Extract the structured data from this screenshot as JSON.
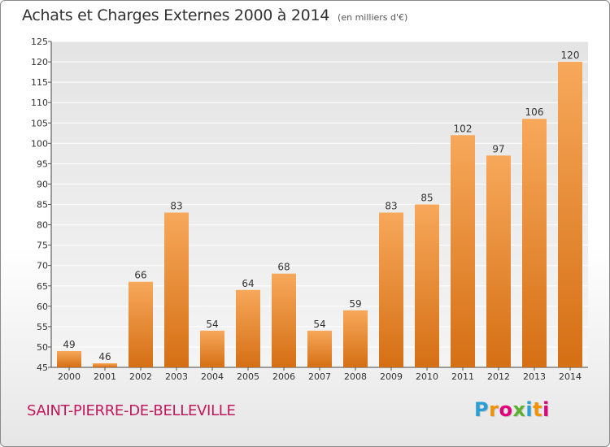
{
  "chart_data": {
    "type": "bar",
    "title": "Achats et Charges Externes 2000 à 2014",
    "unit": "(en milliers d'€)",
    "categories": [
      "2000",
      "2001",
      "2002",
      "2003",
      "2004",
      "2005",
      "2006",
      "2007",
      "2008",
      "2009",
      "2010",
      "2011",
      "2012",
      "2013",
      "2014"
    ],
    "values": [
      49,
      46,
      66,
      83,
      54,
      64,
      68,
      54,
      59,
      83,
      85,
      102,
      97,
      106,
      120
    ],
    "ylim": [
      45,
      125
    ],
    "yticks": [
      45,
      50,
      55,
      60,
      65,
      70,
      75,
      80,
      85,
      90,
      95,
      100,
      105,
      110,
      115,
      120,
      125
    ],
    "grid": "horizontal",
    "bar_color": "#f08a2c",
    "bar_color_light": "#f7a85a",
    "bar_color_dark": "#d56f14"
  },
  "commune": "SAINT-PIERRE-DE-BELLEVILLE",
  "brand": {
    "letters": [
      "P",
      "r",
      "o",
      "x",
      "i",
      "t",
      "i"
    ],
    "colors": [
      "#2a9fd6",
      "#f39200",
      "#e2007a",
      "#5bb12f",
      "#2a9fd6",
      "#f39200",
      "#e2007a"
    ]
  }
}
